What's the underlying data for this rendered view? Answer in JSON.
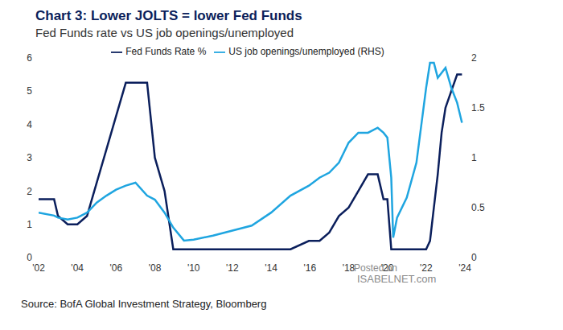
{
  "chart_data": {
    "type": "line",
    "title": "Chart 3: Lower JOLTS = lower Fed Funds",
    "subtitle": "Fed Funds rate vs US job openings/unemployed",
    "source": "Source: BofA Global Investment Strategy, Bloomberg",
    "annotations": [
      "Posted on",
      "ISABELNET.com"
    ],
    "x": [
      2002.0,
      2002.8,
      2003.0,
      2003.5,
      2004.0,
      2004.5,
      2005.0,
      2005.5,
      2006.0,
      2006.5,
      2007.0,
      2007.6,
      2008.0,
      2008.5,
      2008.95,
      2009.5,
      2010.0,
      2011.0,
      2012.0,
      2013.0,
      2014.0,
      2015.0,
      2015.95,
      2016.5,
      2017.0,
      2017.5,
      2018.0,
      2018.5,
      2019.0,
      2019.5,
      2019.8,
      2020.0,
      2020.2,
      2020.3,
      2020.5,
      2021.0,
      2021.5,
      2022.0,
      2022.2,
      2022.4,
      2022.6,
      2022.8,
      2023.0,
      2023.3,
      2023.6,
      2023.85
    ],
    "series": [
      {
        "name": "Fed Funds Rate %",
        "color": "#0b1f5c",
        "values": [
          1.75,
          1.75,
          1.25,
          1.0,
          1.0,
          1.25,
          2.25,
          3.25,
          4.25,
          5.25,
          5.25,
          5.25,
          3.0,
          2.0,
          0.25,
          0.25,
          0.25,
          0.25,
          0.25,
          0.25,
          0.25,
          0.25,
          0.5,
          0.5,
          0.75,
          1.25,
          1.5,
          2.0,
          2.5,
          2.5,
          1.75,
          1.75,
          0.25,
          0.25,
          0.25,
          0.25,
          0.25,
          0.25,
          0.5,
          1.5,
          2.5,
          3.75,
          4.5,
          5.0,
          5.5,
          5.5
        ]
      },
      {
        "name": "US job openings/unemployed (RHS)",
        "color": "#1fa5e0",
        "axis": "y2",
        "values": [
          0.45,
          0.42,
          0.4,
          0.38,
          0.4,
          0.45,
          0.55,
          0.62,
          0.68,
          0.72,
          0.75,
          0.62,
          0.58,
          0.45,
          0.3,
          0.17,
          0.18,
          0.22,
          0.27,
          0.32,
          0.45,
          0.62,
          0.72,
          0.8,
          0.85,
          0.95,
          1.15,
          1.25,
          1.25,
          1.3,
          1.25,
          1.2,
          0.8,
          0.2,
          0.4,
          0.6,
          0.95,
          1.7,
          1.95,
          1.95,
          1.8,
          1.85,
          1.9,
          1.7,
          1.55,
          1.35
        ]
      }
    ],
    "xlim": [
      2002,
      2024
    ],
    "xticks": [
      {
        "value": 2002,
        "label": "'02"
      },
      {
        "value": 2004,
        "label": "'04"
      },
      {
        "value": 2006,
        "label": "'06"
      },
      {
        "value": 2008,
        "label": "'08"
      },
      {
        "value": 2010,
        "label": "'10"
      },
      {
        "value": 2012,
        "label": "'12"
      },
      {
        "value": 2014,
        "label": "'14"
      },
      {
        "value": 2016,
        "label": "'16"
      },
      {
        "value": 2018,
        "label": "'18"
      },
      {
        "value": 2020,
        "label": "'20"
      },
      {
        "value": 2022,
        "label": "'22"
      },
      {
        "value": 2024,
        "label": "'24"
      }
    ],
    "ylim": [
      0,
      6
    ],
    "yticks": [
      0,
      1,
      2,
      3,
      4,
      5,
      6
    ],
    "y2lim": [
      0,
      2
    ],
    "y2ticks": [
      0,
      0.5,
      1,
      1.5,
      2
    ],
    "legend": "top",
    "grid": false
  }
}
